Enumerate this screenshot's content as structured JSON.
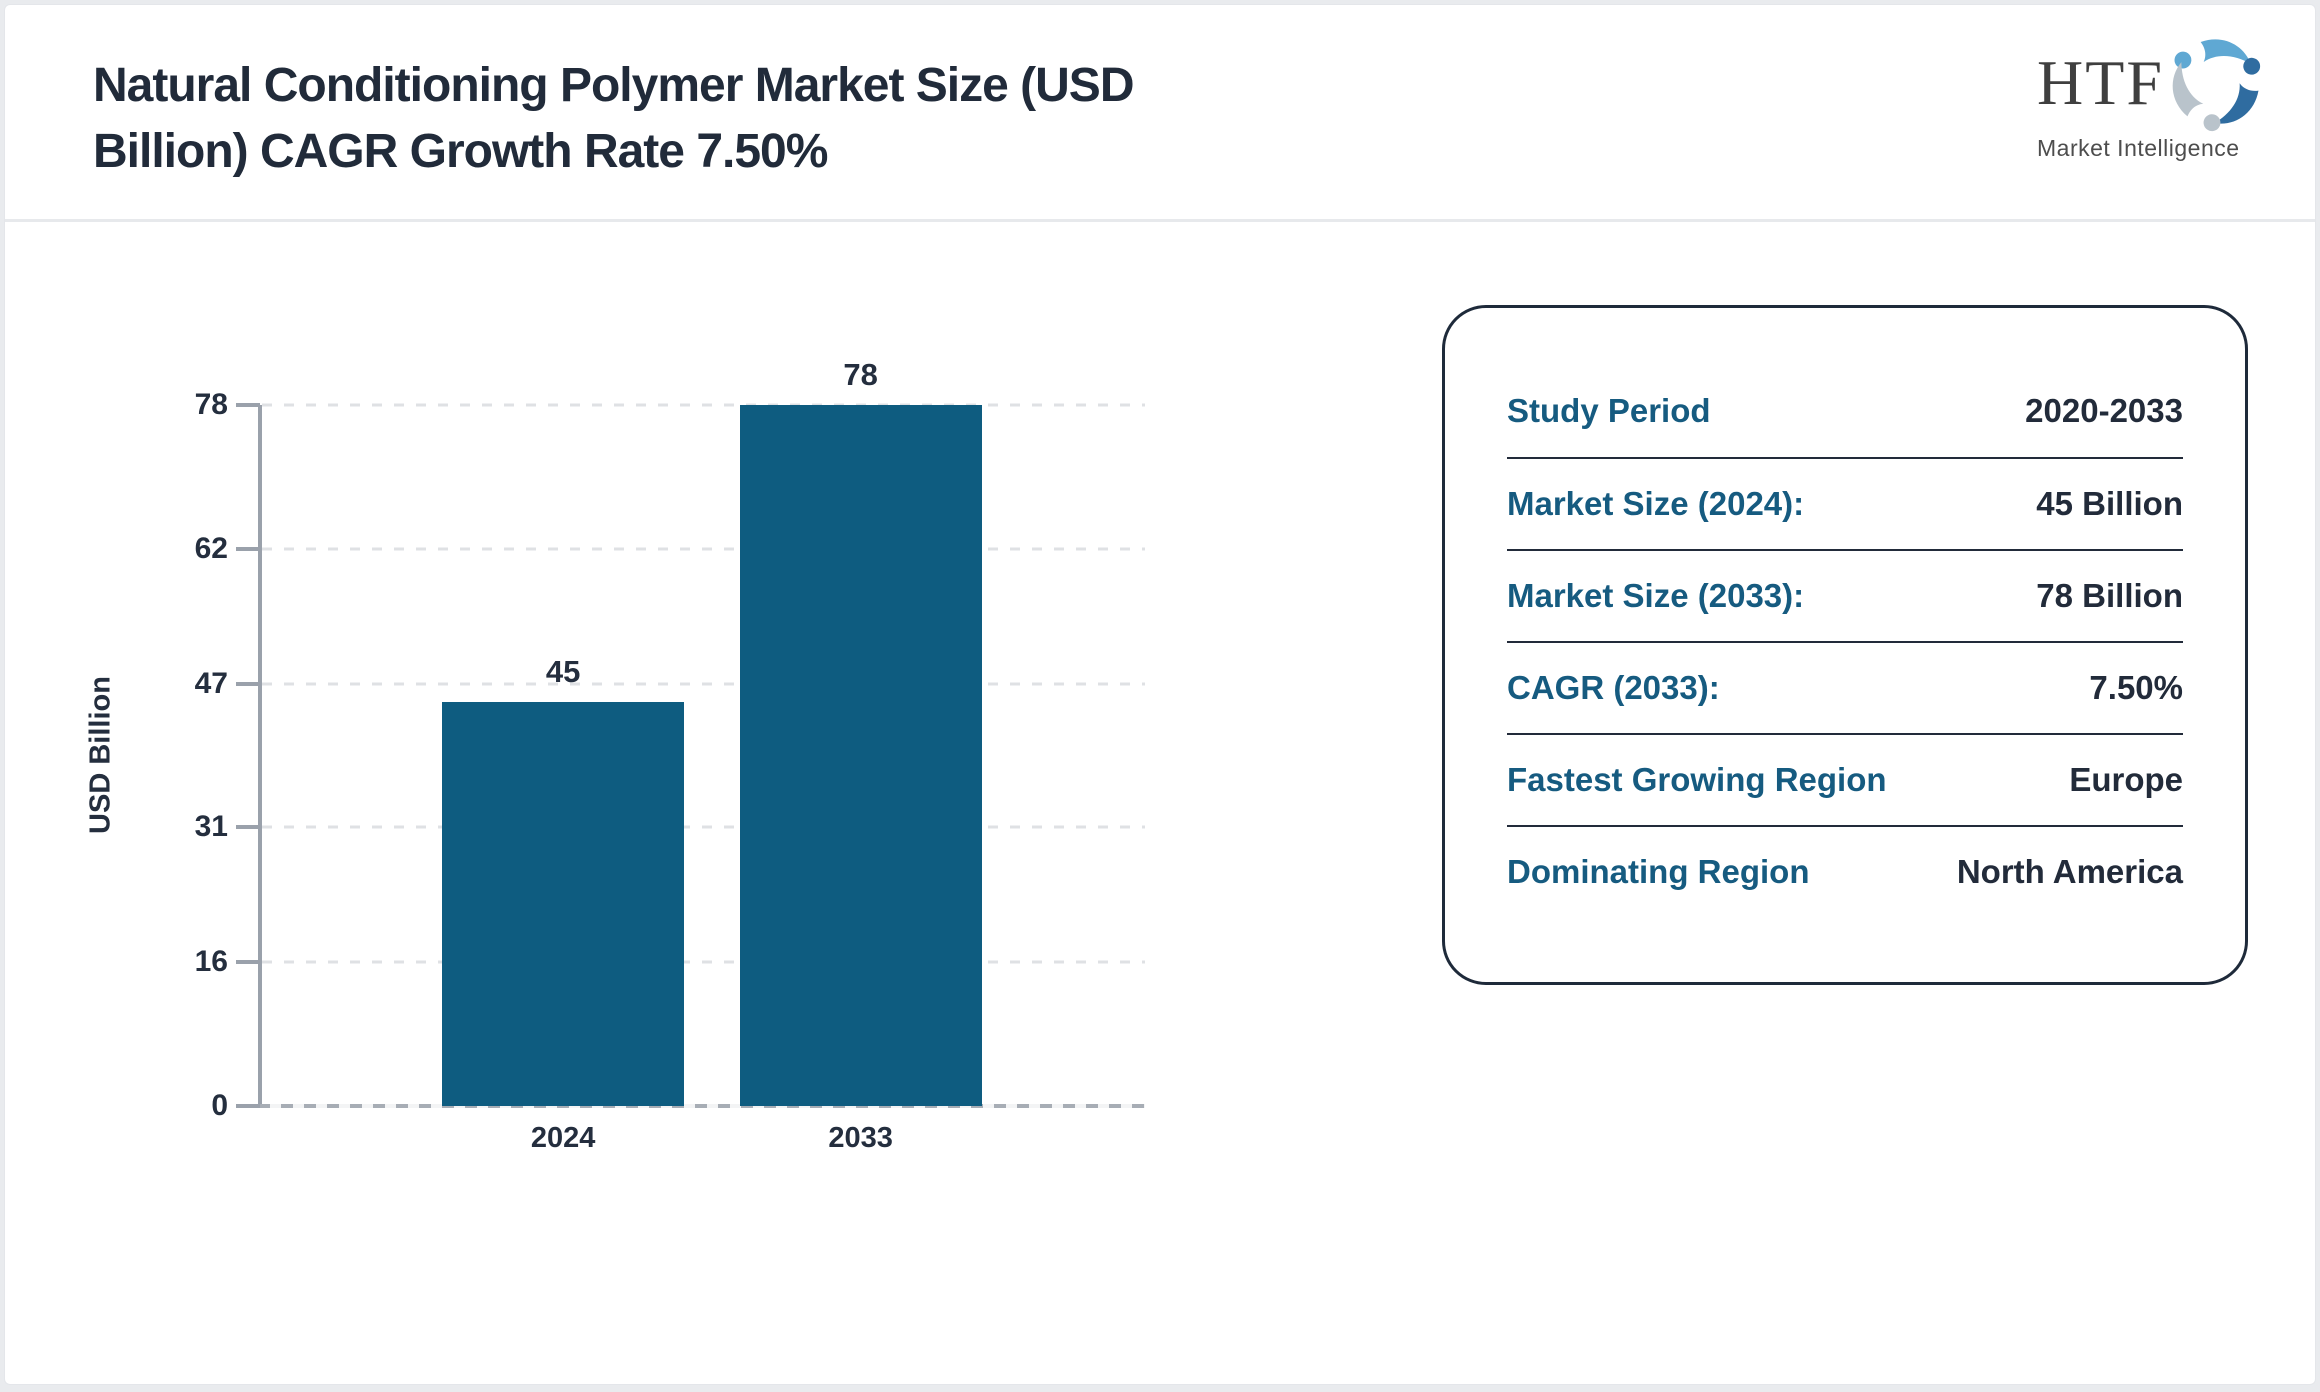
{
  "page": {
    "background_color": "#e9ebee",
    "card_color": "#ffffff"
  },
  "header": {
    "title": "Natural Conditioning Polymer Market Size (USD Billion) CAGR Growth Rate 7.50%",
    "title_lines": [
      "Natural Conditioning Polymer Market Size (USD",
      "Billion) CAGR Growth Rate 7.50%"
    ]
  },
  "logo": {
    "brand": "HTF",
    "subtitle": "Market Intelligence",
    "swirl_colors": [
      "#5fa8d3",
      "#2f6ca0",
      "#b9c3cb"
    ]
  },
  "chart_data": {
    "type": "bar",
    "categories": [
      "2024",
      "2033"
    ],
    "values": [
      45,
      78
    ],
    "data_labels": [
      "45",
      "78"
    ],
    "title": "",
    "xlabel": "",
    "ylabel": "USD Billion",
    "ylim": [
      0,
      78
    ],
    "yticks": [
      0,
      16,
      31,
      47,
      62,
      78
    ],
    "bar_color": "#0e5c80",
    "grid": "horizontal-dashed",
    "legend": "none"
  },
  "panel": {
    "rows": [
      {
        "label": "Study Period",
        "value": "2020-2033"
      },
      {
        "label": "Market Size (2024):",
        "value": "45 Billion"
      },
      {
        "label": "Market Size (2033):",
        "value": "78 Billion"
      },
      {
        "label": "CAGR (2033):",
        "value": "7.50%"
      },
      {
        "label": "Fastest Growing Region",
        "value": "Europe"
      },
      {
        "label": "Dominating Region",
        "value": "North America"
      }
    ],
    "label_color": "#165b80",
    "value_color": "#222b3a",
    "border_color": "#1e2a3a"
  }
}
